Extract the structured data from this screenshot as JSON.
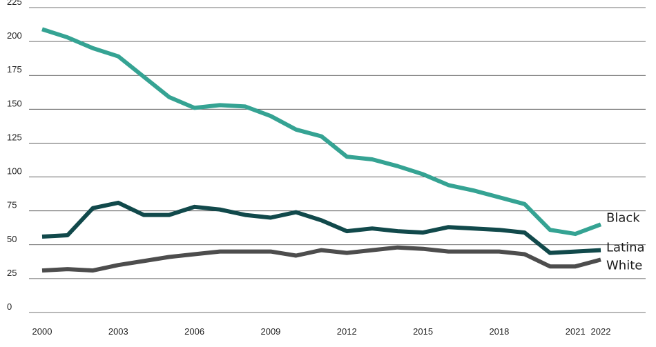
{
  "chart_data": {
    "type": "line",
    "title": "",
    "xlabel": "",
    "ylabel": "",
    "ylim": [
      0,
      225
    ],
    "yticks": [
      0,
      25,
      50,
      75,
      100,
      125,
      150,
      175,
      200,
      225
    ],
    "xticks": [
      2000,
      2003,
      2006,
      2009,
      2012,
      2015,
      2018,
      2021,
      2022
    ],
    "grid": "horizontal",
    "x": [
      2000,
      2001,
      2002,
      2003,
      2004,
      2005,
      2006,
      2007,
      2008,
      2009,
      2010,
      2011,
      2012,
      2013,
      2014,
      2015,
      2016,
      2017,
      2018,
      2019,
      2020,
      2021,
      2022
    ],
    "series": [
      {
        "name": "Black",
        "color": "#35a393",
        "values": [
          209,
          203,
          195,
          189,
          174,
          159,
          151,
          153,
          152,
          145,
          135,
          130,
          115,
          113,
          108,
          102,
          94,
          90,
          85,
          80,
          61,
          58,
          65
        ]
      },
      {
        "name": "Latina",
        "color": "#11494b",
        "values": [
          56,
          57,
          77,
          81,
          72,
          72,
          78,
          76,
          72,
          70,
          74,
          68,
          60,
          62,
          60,
          59,
          63,
          62,
          61,
          59,
          44,
          45,
          46
        ]
      },
      {
        "name": "White",
        "color": "#4d4d4d",
        "values": [
          31,
          32,
          31,
          35,
          38,
          41,
          43,
          45,
          45,
          45,
          42,
          46,
          44,
          46,
          48,
          47,
          45,
          45,
          45,
          43,
          34,
          34,
          39
        ]
      }
    ]
  }
}
